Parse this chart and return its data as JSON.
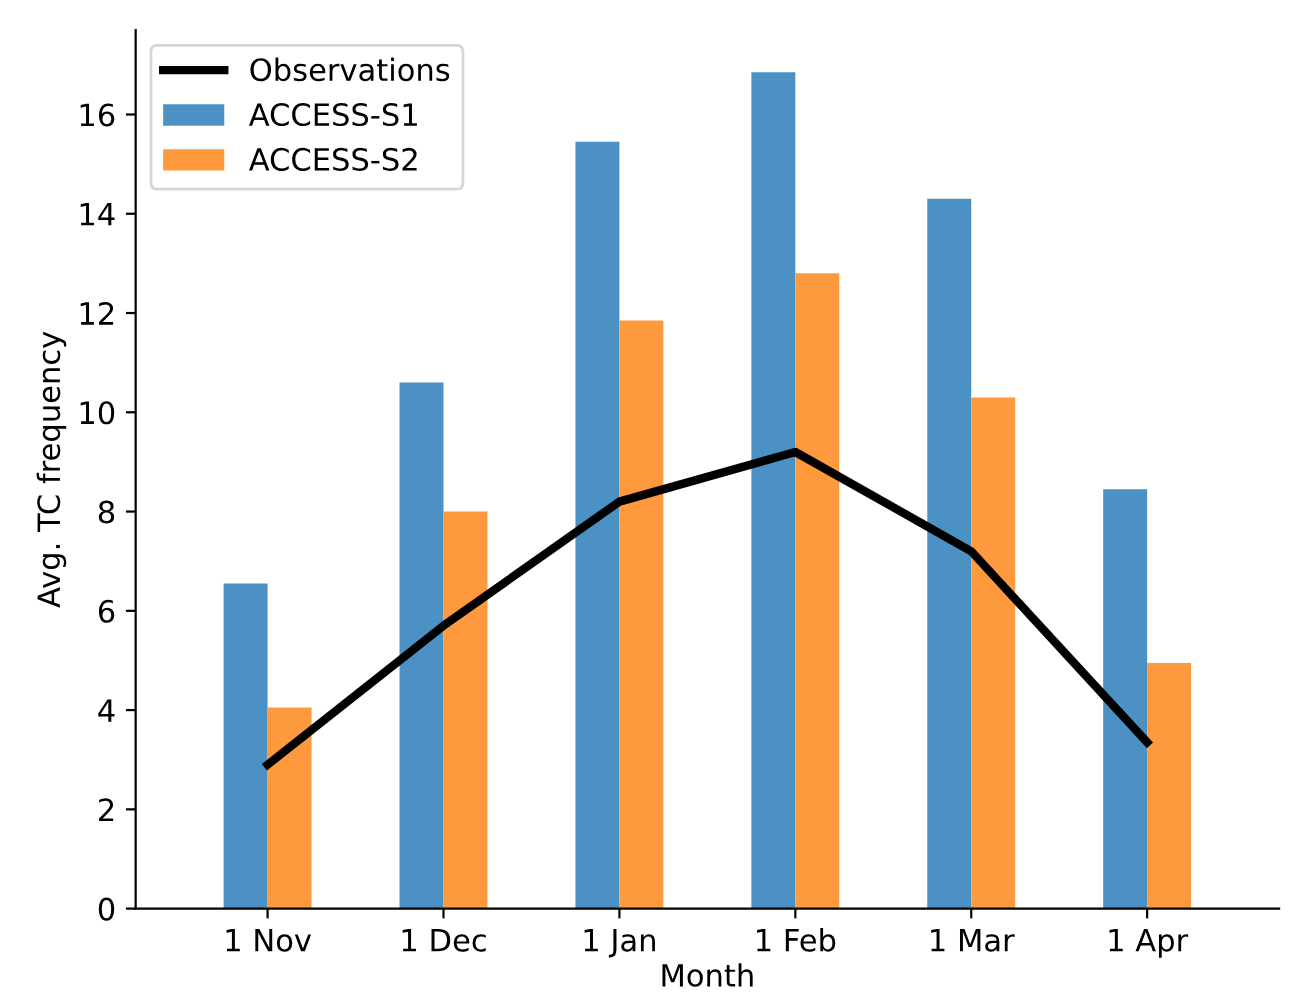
{
  "chart_data": {
    "type": "bar",
    "xlabel": "Month",
    "ylabel": "Avg. TC frequency",
    "categories": [
      "1 Nov",
      "1 Dec",
      "1 Jan",
      "1 Feb",
      "1 Mar",
      "1 Apr"
    ],
    "series": [
      {
        "name": "Observations",
        "type": "line",
        "color": "#000000",
        "values": [
          2.9,
          5.7,
          8.2,
          9.2,
          7.2,
          3.35
        ]
      },
      {
        "name": "ACCESS-S1",
        "color": "#4c91c4",
        "values": [
          6.55,
          10.6,
          15.45,
          16.85,
          14.3,
          8.45
        ]
      },
      {
        "name": "ACCESS-S2",
        "color": "#fe993e",
        "values": [
          4.05,
          8.0,
          11.85,
          12.8,
          10.3,
          4.95
        ]
      }
    ],
    "ylim": [
      0,
      17.7
    ],
    "yticks": [
      0,
      2,
      4,
      6,
      8,
      10,
      12,
      14,
      16
    ],
    "grid": false,
    "legend": "top left",
    "marker": "none",
    "line_style": "solid"
  }
}
